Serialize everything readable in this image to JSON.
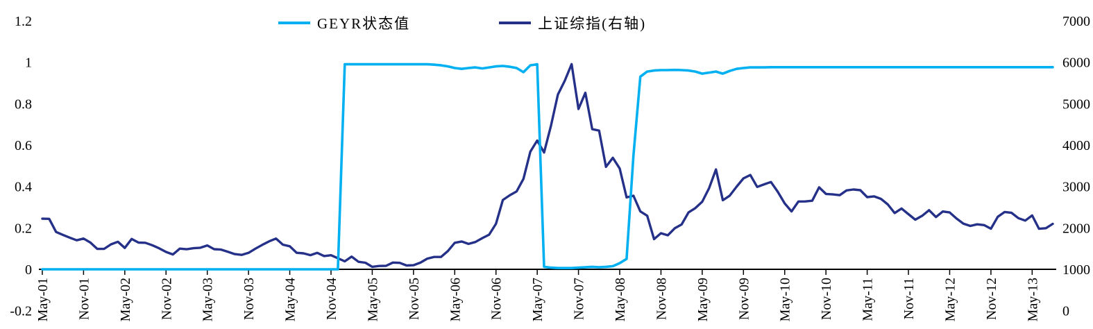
{
  "chart_data": {
    "type": "line",
    "title": "",
    "frequency": "monthly",
    "x_start_label": "May-01",
    "x_tick_step_months": 6,
    "x_tick_labels": [
      "May-01",
      "Nov-01",
      "May-02",
      "Nov-02",
      "May-03",
      "Nov-03",
      "May-04",
      "Nov-04",
      "May-05",
      "Nov-05",
      "May-06",
      "Nov-06",
      "May-07",
      "Nov-07",
      "May-08",
      "Nov-08",
      "May-09",
      "Nov-09",
      "May-10",
      "Nov-10",
      "May-11",
      "Nov-11",
      "May-12",
      "Nov-12",
      "May-13"
    ],
    "left_axis": {
      "min": -0.2,
      "max": 1.2,
      "tick_labels": [
        "1.2",
        "1",
        "0.8",
        "0.6",
        "0.4",
        "0.2",
        "0",
        "-0.2"
      ],
      "tick_values": [
        1.2,
        1,
        0.8,
        0.6,
        0.4,
        0.2,
        0,
        -0.2
      ]
    },
    "right_axis": {
      "min": 0,
      "max": 7000,
      "tick_labels": [
        "7000",
        "6000",
        "5000",
        "4000",
        "3000",
        "2000",
        "1000",
        "0"
      ],
      "tick_values": [
        7000,
        6000,
        5000,
        4000,
        3000,
        2000,
        1000,
        0
      ]
    },
    "grid": "off",
    "legend_position": "top",
    "series": [
      {
        "name": "GEYR状态值",
        "axis": "left",
        "color": "#00B0F0",
        "stroke_width": 3.6,
        "values": [
          0,
          0,
          0,
          0,
          0,
          0,
          0,
          0,
          0,
          0,
          0,
          0,
          0,
          0,
          0,
          0,
          0,
          0,
          0,
          0,
          0,
          0,
          0,
          0,
          0,
          0,
          0,
          0,
          0,
          0,
          0,
          0,
          0,
          0,
          0,
          0,
          0,
          0,
          0,
          0,
          0,
          0,
          0,
          0,
          0.99,
          0.99,
          0.99,
          0.99,
          0.99,
          0.99,
          0.99,
          0.99,
          0.99,
          0.99,
          0.99,
          0.99,
          0.99,
          0.988,
          0.985,
          0.98,
          0.972,
          0.968,
          0.972,
          0.975,
          0.97,
          0.975,
          0.98,
          0.982,
          0.978,
          0.972,
          0.952,
          0.985,
          0.99,
          0.012,
          0.008,
          0.006,
          0.006,
          0.006,
          0.008,
          0.01,
          0.012,
          0.01,
          0.012,
          0.015,
          0.03,
          0.05,
          0.55,
          0.93,
          0.955,
          0.96,
          0.962,
          0.962,
          0.963,
          0.962,
          0.96,
          0.955,
          0.945,
          0.95,
          0.955,
          0.945,
          0.958,
          0.968,
          0.972,
          0.975,
          0.975,
          0.975,
          0.976,
          0.976,
          0.976,
          0.976,
          0.976,
          0.976,
          0.976,
          0.976,
          0.976,
          0.976,
          0.976,
          0.976,
          0.976,
          0.976,
          0.976,
          0.976,
          0.976,
          0.976,
          0.976,
          0.976,
          0.976,
          0.976,
          0.976,
          0.976,
          0.976,
          0.976,
          0.976,
          0.976,
          0.976,
          0.976,
          0.976,
          0.976,
          0.976,
          0.976,
          0.976,
          0.976,
          0.976,
          0.976,
          0.976,
          0.976,
          0.976,
          0.976
        ]
      },
      {
        "name": "上证综指(右轴)",
        "axis": "right",
        "color": "#253188",
        "stroke_width": 3.4,
        "values": [
          2222,
          2218,
          1901,
          1832,
          1765,
          1700,
          1742,
          1646,
          1492,
          1494,
          1603,
          1666,
          1516,
          1733,
          1646,
          1640,
          1582,
          1508,
          1419,
          1358,
          1500,
          1485,
          1510,
          1521,
          1576,
          1486,
          1476,
          1422,
          1367,
          1348,
          1397,
          1497,
          1590,
          1676,
          1742,
          1595,
          1556,
          1399,
          1386,
          1342,
          1397,
          1320,
          1340,
          1267,
          1192,
          1306,
          1181,
          1159,
          1060,
          1081,
          1083,
          1163,
          1156,
          1092,
          1099,
          1161,
          1258,
          1299,
          1298,
          1441,
          1641,
          1672,
          1613,
          1658,
          1752,
          1837,
          2099,
          2675,
          2786,
          2881,
          3184,
          3841,
          4109,
          3820,
          4471,
          5218,
          5552,
          5955,
          4872,
          5262,
          4383,
          4348,
          3473,
          3693,
          3433,
          2736,
          2776,
          2397,
          2294,
          1729,
          1871,
          1821,
          1991,
          2083,
          2373,
          2478,
          2632,
          2959,
          3412,
          2668,
          2779,
          2995,
          3195,
          3277,
          2989,
          3052,
          3109,
          2870,
          2592,
          2398,
          2638,
          2639,
          2656,
          2979,
          2820,
          2808,
          2790,
          2905,
          2928,
          2911,
          2743,
          2762,
          2701,
          2567,
          2359,
          2468,
          2333,
          2199,
          2293,
          2428,
          2262,
          2396,
          2372,
          2225,
          2103,
          2047,
          2086,
          2068,
          1980,
          2269,
          2385,
          2365,
          2236,
          2177,
          2300,
          1979,
          1993,
          2098
        ]
      }
    ]
  }
}
